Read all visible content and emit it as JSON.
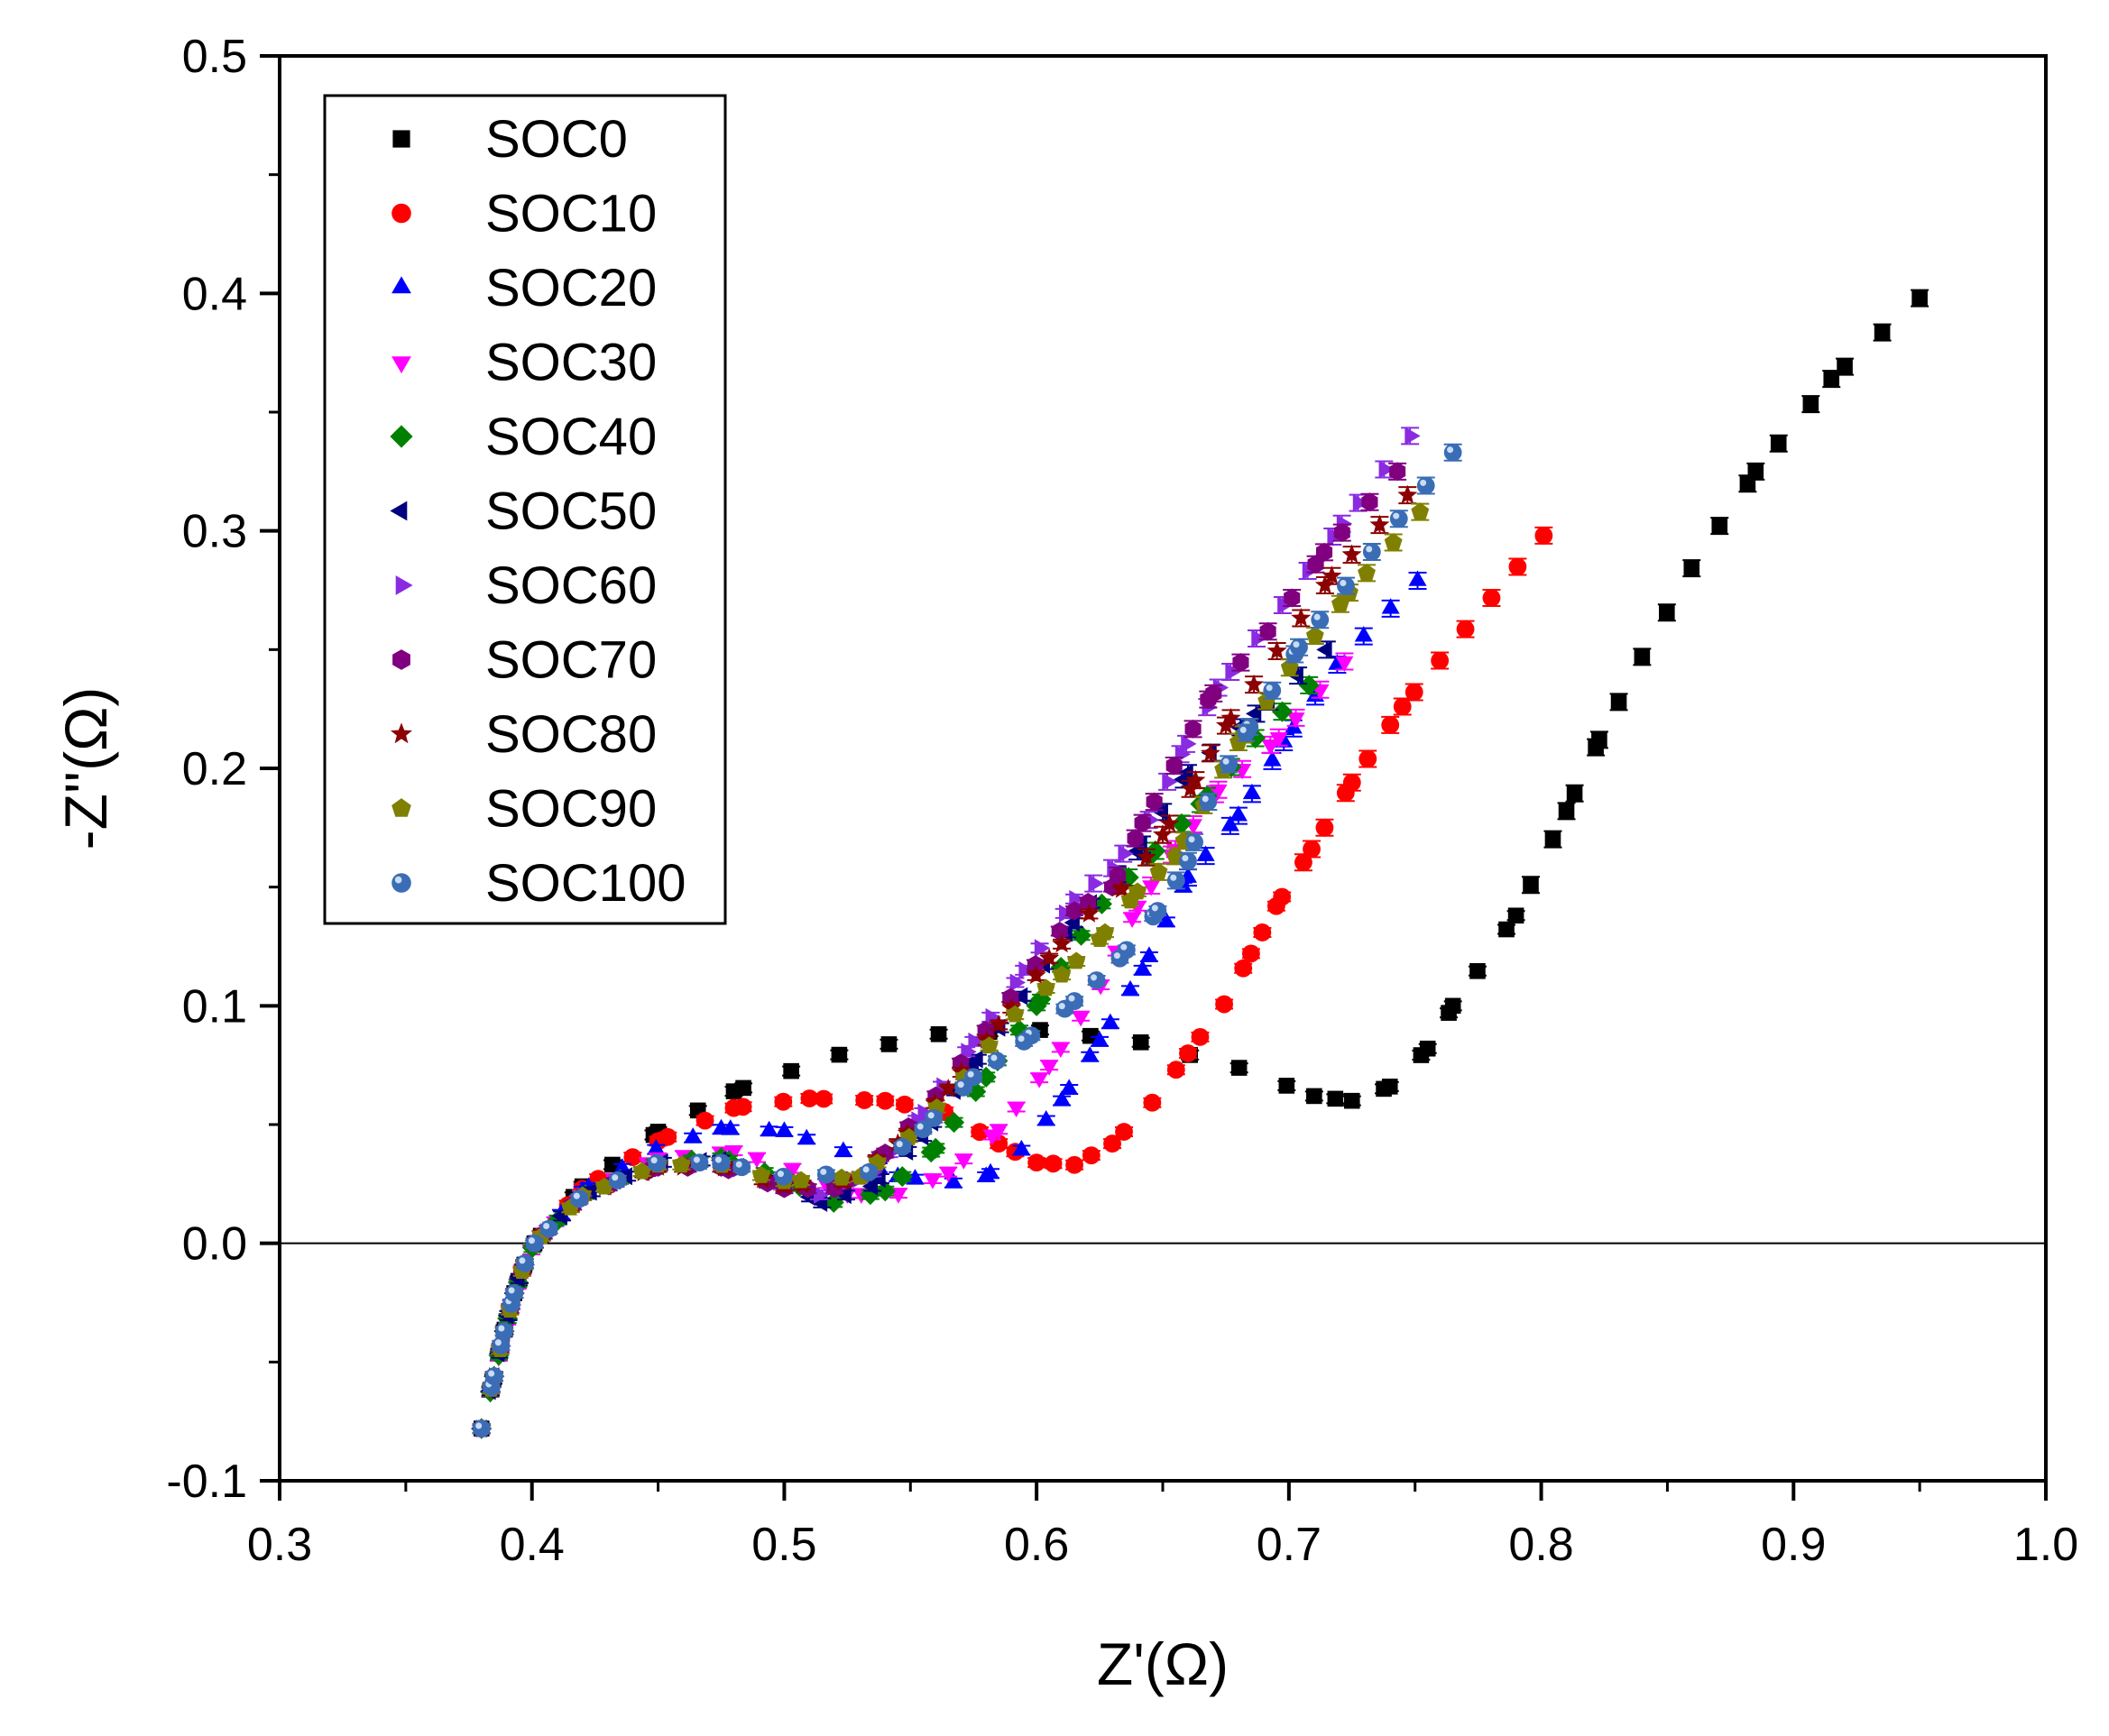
{
  "chart_data": {
    "type": "scatter",
    "title": "",
    "xlabel": "Z'(Ω)",
    "ylabel": "-Z''(Ω)",
    "xlim": [
      0.3,
      1.0
    ],
    "ylim": [
      -0.1,
      0.5
    ],
    "xticks": [
      "0.3",
      "0.4",
      "0.5",
      "0.6",
      "0.7",
      "0.8",
      "0.9",
      "1.0"
    ],
    "yticks": [
      "-0.1",
      "0.0",
      "0.1",
      "0.2",
      "0.3",
      "0.4",
      "0.5"
    ],
    "reference_line_y": 0,
    "legend_position": "top-left",
    "series": [
      {
        "name": "SOC0",
        "color": "#000000",
        "marker": "square",
        "kp": [
          [
            0.38,
            -0.078
          ],
          [
            0.385,
            -0.056
          ],
          [
            0.389,
            -0.037
          ],
          [
            0.393,
            -0.021
          ],
          [
            0.397,
            -0.009
          ],
          [
            0.401,
            0
          ],
          [
            0.42,
            0.024
          ],
          [
            0.45,
            0.047
          ],
          [
            0.48,
            0.064
          ],
          [
            0.52,
            0.079
          ],
          [
            0.56,
            0.088
          ],
          [
            0.6,
            0.09
          ],
          [
            0.64,
            0.085
          ],
          [
            0.68,
            0.074
          ],
          [
            0.71,
            0.062
          ],
          [
            0.725,
            0.06
          ],
          [
            0.74,
            0.066
          ],
          [
            0.755,
            0.082
          ],
          [
            0.765,
            0.1
          ],
          [
            0.775,
            0.115
          ],
          [
            0.79,
            0.138
          ],
          [
            0.81,
            0.182
          ],
          [
            0.823,
            0.212
          ],
          [
            0.84,
            0.247
          ],
          [
            0.86,
            0.285
          ],
          [
            0.885,
            0.325
          ],
          [
            0.915,
            0.364
          ],
          [
            0.95,
            0.398
          ]
        ],
        "n": 42
      },
      {
        "name": "SOC10",
        "color": "#ff0000",
        "marker": "circle",
        "kp": [
          [
            0.38,
            -0.078
          ],
          [
            0.385,
            -0.056
          ],
          [
            0.389,
            -0.037
          ],
          [
            0.393,
            -0.021
          ],
          [
            0.397,
            -0.009
          ],
          [
            0.401,
            0
          ],
          [
            0.42,
            0.023
          ],
          [
            0.45,
            0.043
          ],
          [
            0.48,
            0.057
          ],
          [
            0.51,
            0.061
          ],
          [
            0.54,
            0.06
          ],
          [
            0.565,
            0.055
          ],
          [
            0.585,
            0.042
          ],
          [
            0.6,
            0.034
          ],
          [
            0.615,
            0.033
          ],
          [
            0.63,
            0.042
          ],
          [
            0.645,
            0.058
          ],
          [
            0.66,
            0.08
          ],
          [
            0.674,
            0.1
          ],
          [
            0.685,
            0.122
          ],
          [
            0.695,
            0.142
          ],
          [
            0.709,
            0.166
          ],
          [
            0.725,
            0.194
          ],
          [
            0.745,
            0.226
          ],
          [
            0.771,
            0.26
          ],
          [
            0.801,
            0.298
          ]
        ],
        "n": 40
      },
      {
        "name": "SOC20",
        "color": "#0000ff",
        "marker": "triangle-up",
        "kp": [
          [
            0.38,
            -0.078
          ],
          [
            0.385,
            -0.056
          ],
          [
            0.389,
            -0.037
          ],
          [
            0.393,
            -0.021
          ],
          [
            0.397,
            -0.009
          ],
          [
            0.401,
            0
          ],
          [
            0.42,
            0.022
          ],
          [
            0.45,
            0.04
          ],
          [
            0.475,
            0.048
          ],
          [
            0.5,
            0.047
          ],
          [
            0.525,
            0.038
          ],
          [
            0.545,
            0.028
          ],
          [
            0.565,
            0.025
          ],
          [
            0.58,
            0.028
          ],
          [
            0.595,
            0.04
          ],
          [
            0.61,
            0.06
          ],
          [
            0.625,
            0.085
          ],
          [
            0.642,
            0.115
          ],
          [
            0.66,
            0.154
          ],
          [
            0.68,
            0.18
          ],
          [
            0.698,
            0.211
          ],
          [
            0.72,
            0.245
          ],
          [
            0.751,
            0.279
          ]
        ],
        "n": 38
      },
      {
        "name": "SOC30",
        "color": "#ff00ff",
        "marker": "triangle-down",
        "kp": [
          [
            0.38,
            -0.078
          ],
          [
            0.385,
            -0.056
          ],
          [
            0.389,
            -0.037
          ],
          [
            0.393,
            -0.021
          ],
          [
            0.397,
            -0.009
          ],
          [
            0.401,
            0
          ],
          [
            0.42,
            0.021
          ],
          [
            0.45,
            0.036
          ],
          [
            0.48,
            0.039
          ],
          [
            0.505,
            0.031
          ],
          [
            0.525,
            0.021
          ],
          [
            0.545,
            0.021
          ],
          [
            0.565,
            0.03
          ],
          [
            0.585,
            0.048
          ],
          [
            0.605,
            0.075
          ],
          [
            0.625,
            0.108
          ],
          [
            0.64,
            0.142
          ],
          [
            0.655,
            0.166
          ],
          [
            0.672,
            0.191
          ],
          [
            0.696,
            0.213
          ],
          [
            0.722,
            0.245
          ]
        ],
        "n": 36
      },
      {
        "name": "SOC40",
        "color": "#008000",
        "marker": "diamond",
        "kp": [
          [
            0.38,
            -0.078
          ],
          [
            0.385,
            -0.056
          ],
          [
            0.389,
            -0.037
          ],
          [
            0.393,
            -0.021
          ],
          [
            0.397,
            -0.009
          ],
          [
            0.401,
            0
          ],
          [
            0.42,
            0.02
          ],
          [
            0.45,
            0.034
          ],
          [
            0.475,
            0.036
          ],
          [
            0.5,
            0.027
          ],
          [
            0.52,
            0.017
          ],
          [
            0.54,
            0.022
          ],
          [
            0.56,
            0.04
          ],
          [
            0.58,
            0.07
          ],
          [
            0.6,
            0.1
          ],
          [
            0.625,
            0.142
          ],
          [
            0.645,
            0.163
          ],
          [
            0.665,
            0.185
          ],
          [
            0.686,
            0.212
          ],
          [
            0.708,
            0.235
          ]
        ],
        "n": 34
      },
      {
        "name": "SOC50",
        "color": "#000080",
        "marker": "triangle-left",
        "kp": [
          [
            0.38,
            -0.078
          ],
          [
            0.385,
            -0.056
          ],
          [
            0.389,
            -0.037
          ],
          [
            0.393,
            -0.021
          ],
          [
            0.397,
            -0.009
          ],
          [
            0.401,
            0
          ],
          [
            0.42,
            0.02
          ],
          [
            0.45,
            0.034
          ],
          [
            0.475,
            0.035
          ],
          [
            0.5,
            0.025
          ],
          [
            0.515,
            0.017
          ],
          [
            0.535,
            0.024
          ],
          [
            0.555,
            0.045
          ],
          [
            0.575,
            0.075
          ],
          [
            0.595,
            0.105
          ],
          [
            0.615,
            0.135
          ],
          [
            0.64,
            0.165
          ],
          [
            0.66,
            0.198
          ],
          [
            0.687,
            0.223
          ],
          [
            0.715,
            0.25
          ]
        ],
        "n": 34
      },
      {
        "name": "SOC60",
        "color": "#8a2be2",
        "marker": "triangle-right",
        "kp": [
          [
            0.38,
            -0.078
          ],
          [
            0.385,
            -0.056
          ],
          [
            0.389,
            -0.037
          ],
          [
            0.393,
            -0.021
          ],
          [
            0.397,
            -0.009
          ],
          [
            0.401,
            0
          ],
          [
            0.42,
            0.02
          ],
          [
            0.45,
            0.033
          ],
          [
            0.475,
            0.034
          ],
          [
            0.5,
            0.025
          ],
          [
            0.515,
            0.02
          ],
          [
            0.535,
            0.03
          ],
          [
            0.555,
            0.055
          ],
          [
            0.575,
            0.085
          ],
          [
            0.595,
            0.115
          ],
          [
            0.615,
            0.145
          ],
          [
            0.63,
            0.158
          ],
          [
            0.645,
            0.179
          ],
          [
            0.657,
            0.206
          ],
          [
            0.672,
            0.234
          ],
          [
            0.697,
            0.268
          ],
          [
            0.721,
            0.303
          ],
          [
            0.748,
            0.34
          ]
        ],
        "n": 36
      },
      {
        "name": "SOC70",
        "color": "#800080",
        "marker": "hexagon",
        "kp": [
          [
            0.38,
            -0.078
          ],
          [
            0.385,
            -0.056
          ],
          [
            0.389,
            -0.037
          ],
          [
            0.393,
            -0.021
          ],
          [
            0.397,
            -0.009
          ],
          [
            0.401,
            0
          ],
          [
            0.42,
            0.02
          ],
          [
            0.45,
            0.032
          ],
          [
            0.475,
            0.032
          ],
          [
            0.5,
            0.023
          ],
          [
            0.52,
            0.023
          ],
          [
            0.54,
            0.038
          ],
          [
            0.56,
            0.062
          ],
          [
            0.58,
            0.09
          ],
          [
            0.6,
            0.118
          ],
          [
            0.615,
            0.14
          ],
          [
            0.63,
            0.15
          ],
          [
            0.642,
            0.177
          ],
          [
            0.654,
            0.2
          ],
          [
            0.668,
            0.229
          ],
          [
            0.692,
            0.258
          ],
          [
            0.714,
            0.291
          ],
          [
            0.743,
            0.325
          ]
        ],
        "n": 36
      },
      {
        "name": "SOC80",
        "color": "#8b0000",
        "marker": "star",
        "kp": [
          [
            0.38,
            -0.078
          ],
          [
            0.385,
            -0.056
          ],
          [
            0.389,
            -0.037
          ],
          [
            0.393,
            -0.021
          ],
          [
            0.397,
            -0.009
          ],
          [
            0.401,
            0
          ],
          [
            0.42,
            0.02
          ],
          [
            0.45,
            0.032
          ],
          [
            0.475,
            0.032
          ],
          [
            0.5,
            0.024
          ],
          [
            0.525,
            0.026
          ],
          [
            0.545,
            0.042
          ],
          [
            0.565,
            0.065
          ],
          [
            0.585,
            0.092
          ],
          [
            0.605,
            0.12
          ],
          [
            0.62,
            0.138
          ],
          [
            0.635,
            0.15
          ],
          [
            0.65,
            0.172
          ],
          [
            0.663,
            0.195
          ],
          [
            0.675,
            0.218
          ],
          [
            0.695,
            0.249
          ],
          [
            0.717,
            0.281
          ],
          [
            0.747,
            0.315
          ]
        ],
        "n": 36
      },
      {
        "name": "SOC90",
        "color": "#808000",
        "marker": "pentagon",
        "kp": [
          [
            0.38,
            -0.078
          ],
          [
            0.385,
            -0.056
          ],
          [
            0.389,
            -0.037
          ],
          [
            0.393,
            -0.021
          ],
          [
            0.397,
            -0.009
          ],
          [
            0.401,
            0
          ],
          [
            0.42,
            0.02
          ],
          [
            0.45,
            0.033
          ],
          [
            0.475,
            0.033
          ],
          [
            0.5,
            0.026
          ],
          [
            0.53,
            0.028
          ],
          [
            0.55,
            0.045
          ],
          [
            0.57,
            0.068
          ],
          [
            0.59,
            0.095
          ],
          [
            0.61,
            0.113
          ],
          [
            0.625,
            0.128
          ],
          [
            0.64,
            0.148
          ],
          [
            0.655,
            0.163
          ],
          [
            0.667,
            0.186
          ],
          [
            0.68,
            0.211
          ],
          [
            0.7,
            0.242
          ],
          [
            0.724,
            0.274
          ],
          [
            0.752,
            0.308
          ]
        ],
        "n": 36
      },
      {
        "name": "SOC100",
        "color": "#3a6db5",
        "marker": "sphere",
        "kp": [
          [
            0.38,
            -0.078
          ],
          [
            0.385,
            -0.056
          ],
          [
            0.389,
            -0.037
          ],
          [
            0.393,
            -0.021
          ],
          [
            0.397,
            -0.009
          ],
          [
            0.401,
            0
          ],
          [
            0.42,
            0.02
          ],
          [
            0.45,
            0.034
          ],
          [
            0.475,
            0.034
          ],
          [
            0.5,
            0.028
          ],
          [
            0.535,
            0.03
          ],
          [
            0.555,
            0.048
          ],
          [
            0.575,
            0.07
          ],
          [
            0.595,
            0.085
          ],
          [
            0.615,
            0.102
          ],
          [
            0.633,
            0.12
          ],
          [
            0.648,
            0.14
          ],
          [
            0.66,
            0.161
          ],
          [
            0.668,
            0.186
          ],
          [
            0.683,
            0.215
          ],
          [
            0.704,
            0.251
          ],
          [
            0.732,
            0.29
          ],
          [
            0.765,
            0.333
          ]
        ],
        "n": 36
      }
    ]
  }
}
